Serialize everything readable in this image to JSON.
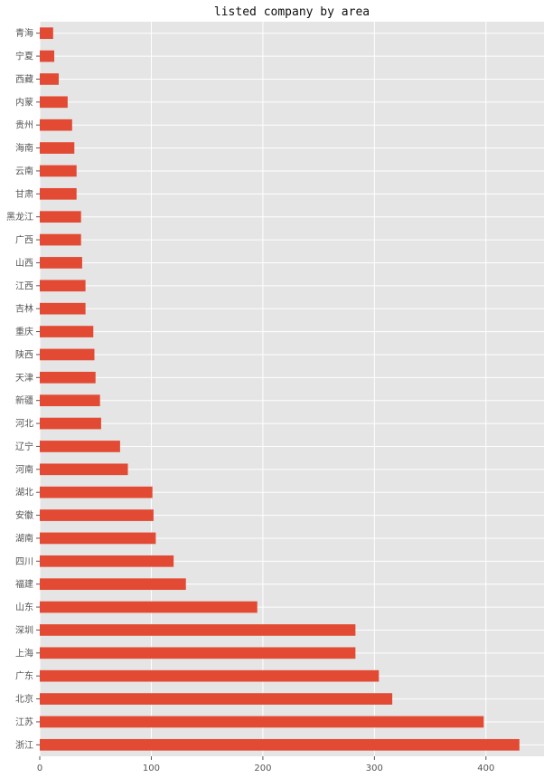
{
  "chart_data": {
    "type": "bar",
    "orientation": "horizontal",
    "title": "listed company by area",
    "xlabel": "",
    "ylabel": "",
    "xlim": [
      0,
      452
    ],
    "xticks": [
      0,
      100,
      200,
      300,
      400
    ],
    "grid": true,
    "colors": {
      "bar": "#E24A33",
      "background": "#E5E5E5",
      "grid": "#FFFFFF"
    },
    "categories": [
      "青海",
      "宁夏",
      "西藏",
      "内蒙",
      "贵州",
      "海南",
      "云南",
      "甘肃",
      "黑龙江",
      "广西",
      "山西",
      "江西",
      "吉林",
      "重庆",
      "陕西",
      "天津",
      "新疆",
      "河北",
      "辽宁",
      "河南",
      "湖北",
      "安徽",
      "湖南",
      "四川",
      "福建",
      "山东",
      "深圳",
      "上海",
      "广东",
      "北京",
      "江苏",
      "浙江"
    ],
    "values": [
      12,
      13,
      17,
      25,
      29,
      31,
      33,
      33,
      37,
      37,
      38,
      41,
      41,
      48,
      49,
      50,
      54,
      55,
      72,
      79,
      101,
      102,
      104,
      120,
      131,
      195,
      283,
      283,
      304,
      316,
      398,
      430
    ]
  }
}
